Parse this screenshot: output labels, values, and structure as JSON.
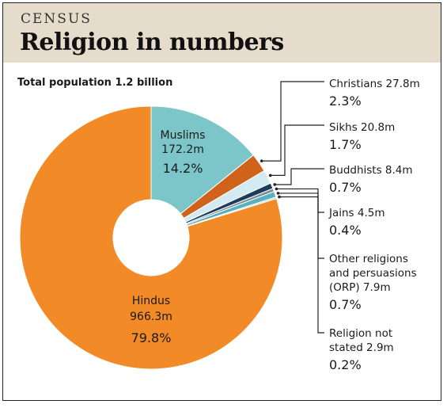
{
  "header": {
    "kicker": "CENSUS",
    "title": "Religion in numbers"
  },
  "chart_data": {
    "type": "pie",
    "subtitle": "Total population 1.2 billion",
    "slices": [
      {
        "name": "Muslims",
        "value_m": "172.2m",
        "pct": 14.2,
        "pct_label": "14.2%",
        "color": "#7cc6c9"
      },
      {
        "name": "Christians",
        "value_m": "27.8m",
        "pct": 2.3,
        "pct_label": "2.3%",
        "color": "#d0631b"
      },
      {
        "name": "Sikhs",
        "value_m": "20.8m",
        "pct": 1.7,
        "pct_label": "1.7%",
        "color": "#d3eaf2"
      },
      {
        "name": "Buddhists",
        "value_m": "8.4m",
        "pct": 0.7,
        "pct_label": "0.7%",
        "color": "#1d3c5a"
      },
      {
        "name": "Jains",
        "value_m": "4.5m",
        "pct": 0.4,
        "pct_label": "0.4%",
        "color": "#7f8f99"
      },
      {
        "name": "Other religions and persuasions (ORP)",
        "value_m": "7.9m",
        "pct": 0.7,
        "pct_label": "0.7%",
        "color": "#5ab0bf"
      },
      {
        "name": "Religion not stated",
        "value_m": "2.9m",
        "pct": 0.2,
        "pct_label": "0.2%",
        "color": "#b9dde6"
      },
      {
        "name": "Hindus",
        "value_m": "966.3m",
        "pct": 79.8,
        "pct_label": "79.8%",
        "color": "#f28a28"
      }
    ]
  },
  "labels": {
    "muslims": {
      "name": "Muslims",
      "value": "172.2m",
      "pct": "14.2%"
    },
    "hindus": {
      "name": "Hindus",
      "value": "966.3m",
      "pct": "79.8%"
    },
    "christians": {
      "line1": "Christians 27.8m",
      "pct": "2.3%"
    },
    "sikhs": {
      "line1": "Sikhs 20.8m",
      "pct": "1.7%"
    },
    "buddhists": {
      "line1": "Buddhists 8.4m",
      "pct": "0.7%"
    },
    "jains": {
      "line1": "Jains 4.5m",
      "pct": "0.4%"
    },
    "orp": {
      "line1": "Other religions",
      "line2": "and persuasions",
      "line3": "(ORP) 7.9m",
      "pct": "0.7%"
    },
    "not_stated": {
      "line1": "Religion not",
      "line2": "stated 2.9m",
      "pct": "0.2%"
    }
  }
}
